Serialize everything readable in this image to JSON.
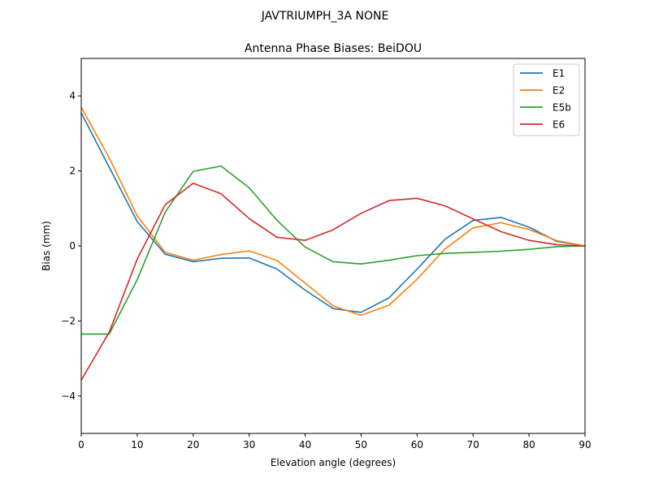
{
  "suptitle": "JAVTRIUMPH_3A   NONE",
  "chart_data": {
    "type": "line",
    "title": "Antenna Phase Biases: BeiDOU",
    "xlabel": "Elevation angle (degrees)",
    "ylabel": "Bias (mm)",
    "xlim": [
      0,
      90
    ],
    "ylim": [
      -5,
      5
    ],
    "xticks": [
      0,
      10,
      20,
      30,
      40,
      50,
      60,
      70,
      80,
      90
    ],
    "yticks": [
      -4,
      -2,
      0,
      2,
      4
    ],
    "xtick_labels": [
      "0",
      "10",
      "20",
      "30",
      "40",
      "50",
      "60",
      "70",
      "80",
      "90"
    ],
    "ytick_labels": [
      "−4",
      "−2",
      "0",
      "2",
      "4"
    ],
    "grid": false,
    "legend_position": "top-right",
    "x": [
      0,
      5,
      10,
      15,
      20,
      25,
      30,
      35,
      40,
      45,
      50,
      55,
      60,
      65,
      70,
      75,
      80,
      85,
      90
    ],
    "series": [
      {
        "name": "E1",
        "color": "#1f77b4",
        "values": [
          3.55,
          2.1,
          0.65,
          -0.22,
          -0.42,
          -0.33,
          -0.32,
          -0.62,
          -1.18,
          -1.67,
          -1.77,
          -1.38,
          -0.62,
          0.18,
          0.68,
          0.76,
          0.5,
          0.12,
          0.0
        ]
      },
      {
        "name": "E2",
        "color": "#ff7f0e",
        "values": [
          3.7,
          2.35,
          0.8,
          -0.17,
          -0.38,
          -0.23,
          -0.13,
          -0.39,
          -0.99,
          -1.6,
          -1.85,
          -1.58,
          -0.89,
          -0.08,
          0.48,
          0.62,
          0.44,
          0.14,
          0.0
        ]
      },
      {
        "name": "E5b",
        "color": "#2ca02c",
        "values": [
          -2.35,
          -2.35,
          -0.9,
          0.9,
          1.99,
          2.13,
          1.55,
          0.68,
          -0.03,
          -0.42,
          -0.48,
          -0.38,
          -0.26,
          -0.2,
          -0.17,
          -0.14,
          -0.09,
          -0.02,
          0.0
        ]
      },
      {
        "name": "E6",
        "color": "#d62728",
        "values": [
          -3.58,
          -2.3,
          -0.35,
          1.1,
          1.67,
          1.39,
          0.73,
          0.23,
          0.15,
          0.43,
          0.87,
          1.21,
          1.27,
          1.07,
          0.72,
          0.38,
          0.15,
          0.03,
          0.0
        ]
      }
    ]
  }
}
